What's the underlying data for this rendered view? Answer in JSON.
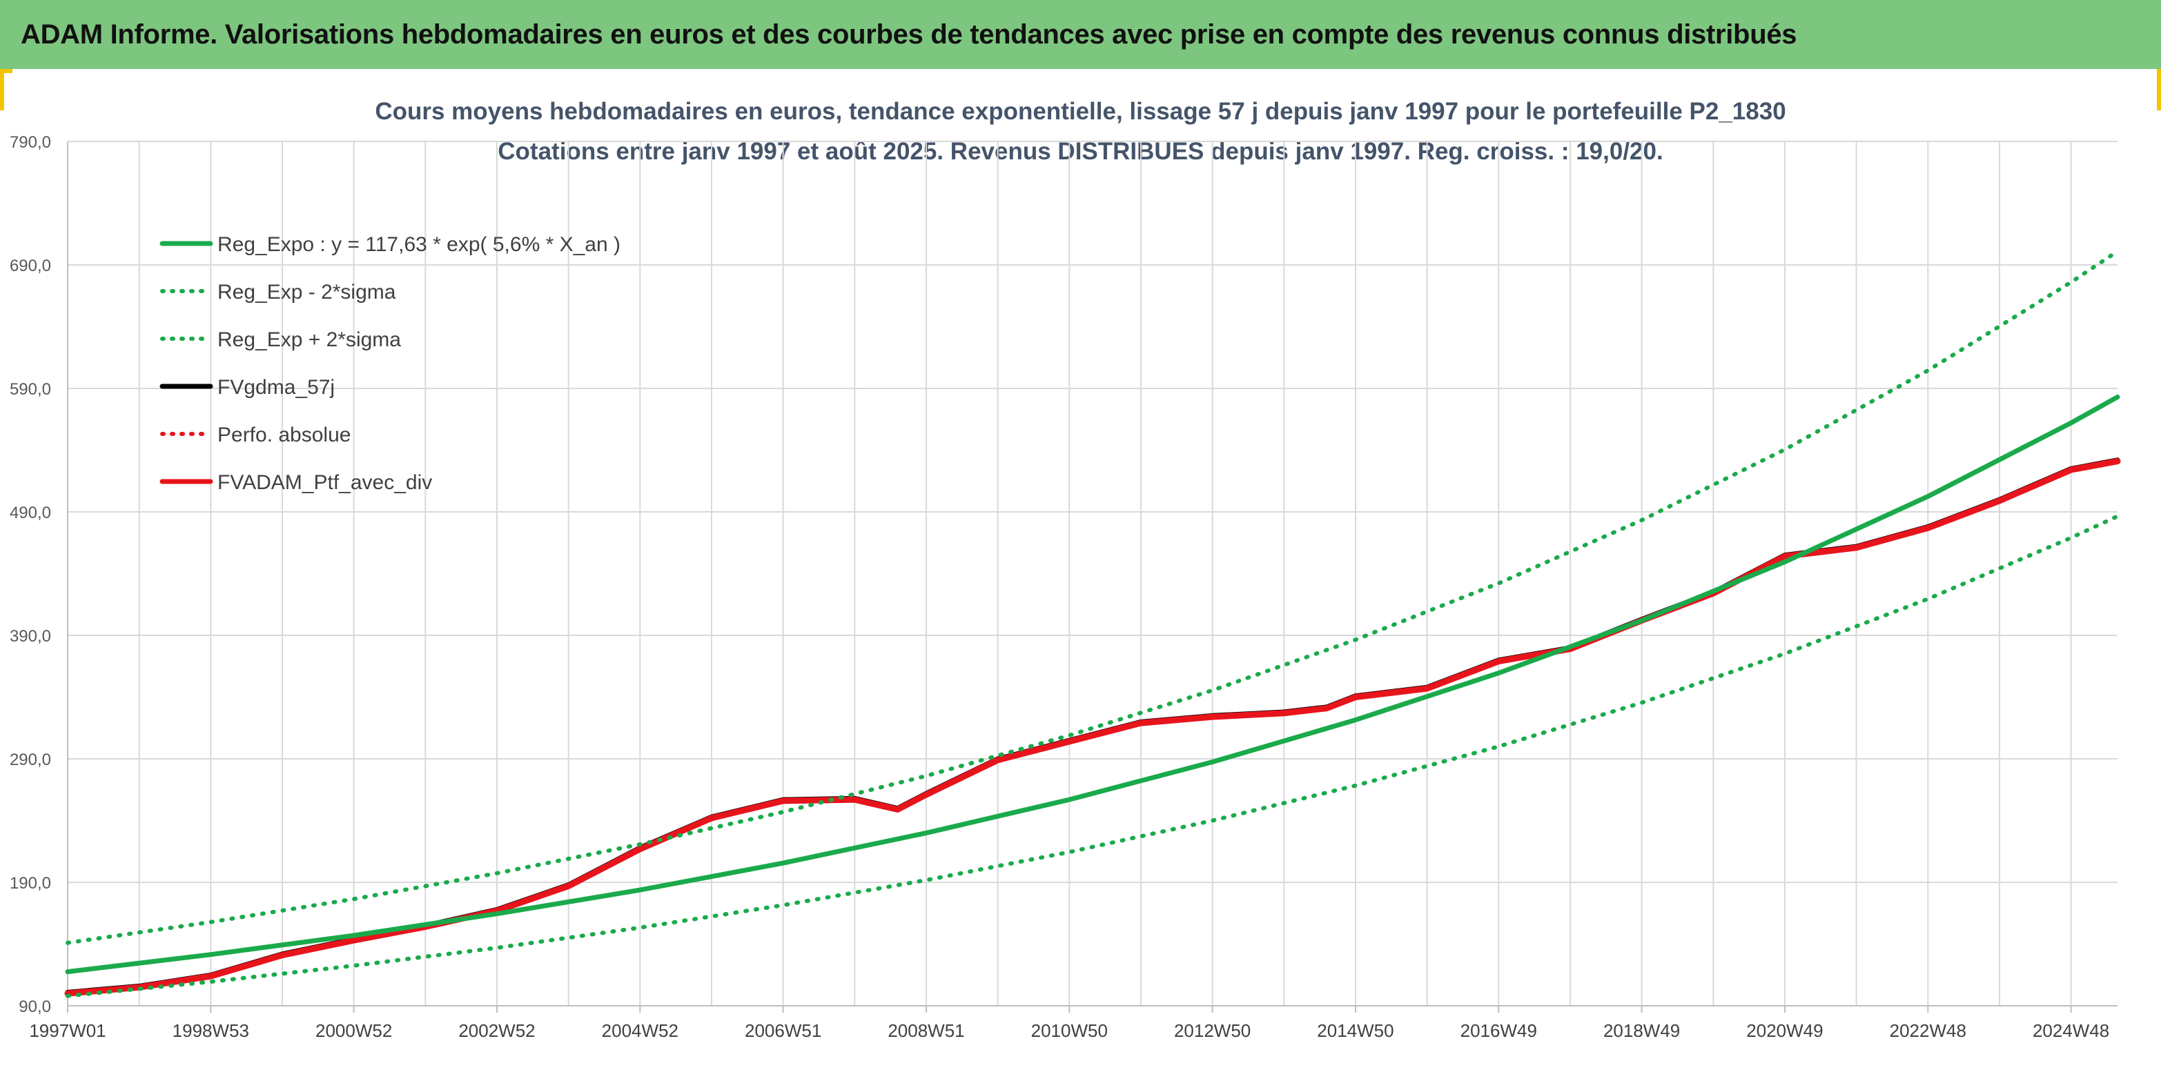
{
  "header": {
    "title": "ADAM Informe. Valorisations hebdomadaires en euros et des courbes de tendances avec prise en compte des revenus connus distribués"
  },
  "colors": {
    "banner": "#7dc67f",
    "accent_corner": "#f5c400",
    "reg_green": "#1aaa4b",
    "ptf_red": "#e8141c",
    "fv_black": "#000000",
    "grid": "#d9d9d9",
    "title_text": "#44546a"
  },
  "chart_data": {
    "type": "line",
    "title": "Cours moyens hebdomadaires en euros, tendance exponentielle, lissage 57 j depuis janv 1997 pour le portefeuille P2_1830",
    "subtitle": "Cotations entre janv 1997 et août 2025. Revenus DISTRIBUES depuis janv 1997. Reg. croiss. : 19,0/20.",
    "xlabel": "",
    "ylabel": "",
    "ylim": [
      90,
      790
    ],
    "yticks": [
      "790,0",
      "690,0",
      "590,0",
      "490,0",
      "390,0",
      "290,0",
      "190,0",
      "90,0"
    ],
    "xlim": [
      1997.0,
      2025.65
    ],
    "xtick_labels": [
      "1997W01",
      "1998W53",
      "2000W52",
      "2002W52",
      "2004W52",
      "2006W51",
      "2008W51",
      "2010W50",
      "2012W50",
      "2014W50",
      "2016W49",
      "2018W49",
      "2020W49",
      "2022W48",
      "2024W48"
    ],
    "xtick_years": [
      1997,
      1999,
      2001,
      2003,
      2005,
      2007,
      2009,
      2011,
      2013,
      2015,
      2017,
      2019,
      2021,
      2023,
      2025
    ],
    "grid": true,
    "legend_position": "top-left",
    "series": [
      {
        "name": "Reg_Expo : y = 117,63 * exp( 5,6% *  X_an )",
        "style": "solid",
        "color": "#1aaa4b",
        "x": [
          1997,
          1999,
          2001,
          2003,
          2005,
          2007,
          2009,
          2011,
          2013,
          2015,
          2017,
          2019,
          2021,
          2023,
          2025,
          2025.65
        ],
        "y": [
          117.6,
          131.5,
          147.0,
          164.5,
          183.8,
          205.6,
          230.0,
          257.0,
          287.5,
          321.5,
          359.5,
          402.0,
          449.5,
          502.5,
          562.0,
          583.0
        ]
      },
      {
        "name": "Reg_Exp - 2*sigma",
        "style": "dotted",
        "color": "#1aaa4b",
        "x": [
          1997,
          1999,
          2001,
          2003,
          2005,
          2007,
          2009,
          2011,
          2013,
          2015,
          2017,
          2019,
          2021,
          2023,
          2025,
          2025.65
        ],
        "y": [
          98.0,
          109.5,
          122.5,
          137.0,
          153.3,
          171.5,
          191.8,
          214.5,
          240.0,
          268.3,
          300.0,
          335.5,
          375.2,
          419.5,
          469.0,
          486.5
        ]
      },
      {
        "name": "Reg_Exp + 2*sigma",
        "style": "dotted",
        "color": "#1aaa4b",
        "x": [
          1997,
          1999,
          2001,
          2003,
          2005,
          2007,
          2009,
          2011,
          2013,
          2015,
          2017,
          2019,
          2021,
          2023,
          2025,
          2025.65
        ],
        "y": [
          141.0,
          157.8,
          176.5,
          197.4,
          220.8,
          247.0,
          276.2,
          309.0,
          345.5,
          386.4,
          432.2,
          483.3,
          540.5,
          604.5,
          676.0,
          701.0
        ]
      },
      {
        "name": "FVgdma_57j",
        "style": "solid",
        "color": "#000000",
        "x": [
          1997.0,
          1998.0,
          1999.0,
          2000.0,
          2001.0,
          2002.0,
          2003.0,
          2004.0,
          2005.0,
          2006.0,
          2007.0,
          2008.0,
          2008.6,
          2009.0,
          2010.0,
          2011.0,
          2012.0,
          2013.0,
          2014.0,
          2014.6,
          2015.0,
          2016.0,
          2017.0,
          2018.0,
          2019.0,
          2020.0,
          2021.0,
          2022.0,
          2023.0,
          2024.0,
          2025.0,
          2025.65
        ],
        "y": [
          101.0,
          106.0,
          115.0,
          132.0,
          144.0,
          155.0,
          168.0,
          188.0,
          218.0,
          243.0,
          257.0,
          258.0,
          250.0,
          262.0,
          290.0,
          305.0,
          320.0,
          325.0,
          328.0,
          332.0,
          341.0,
          348.0,
          370.0,
          380.0,
          403.0,
          425.0,
          455.0,
          462.0,
          478.0,
          500.0,
          525.0,
          532.0
        ]
      },
      {
        "name": "Perfo. absolue",
        "style": "dotted",
        "color": "#e8141c",
        "x": [
          1997.0,
          1998.0,
          1999.0,
          2000.0,
          2001.0,
          2002.0,
          2003.0,
          2004.0,
          2005.0,
          2006.0,
          2007.0,
          2008.0,
          2008.6,
          2009.0,
          2010.0,
          2011.0,
          2012.0,
          2013.0,
          2014.0,
          2014.6,
          2015.0,
          2016.0,
          2017.0,
          2018.0,
          2019.0,
          2020.0,
          2021.0,
          2022.0,
          2023.0,
          2024.0,
          2025.0,
          2025.65
        ],
        "y": [
          101.0,
          106.0,
          115.0,
          132.0,
          144.0,
          155.0,
          168.0,
          188.0,
          218.0,
          243.0,
          257.0,
          258.0,
          250.0,
          262.0,
          290.0,
          305.0,
          320.0,
          325.0,
          328.0,
          332.0,
          341.0,
          348.0,
          370.0,
          380.0,
          403.0,
          425.0,
          455.0,
          462.0,
          478.0,
          500.0,
          525.0,
          532.0
        ]
      },
      {
        "name": "FVADAM_Ptf_avec_div",
        "style": "solid",
        "color": "#e8141c",
        "x": [
          1997.0,
          1998.0,
          1999.0,
          2000.0,
          2001.0,
          2002.0,
          2003.0,
          2004.0,
          2005.0,
          2006.0,
          2007.0,
          2008.0,
          2008.6,
          2009.0,
          2010.0,
          2011.0,
          2012.0,
          2013.0,
          2014.0,
          2014.6,
          2015.0,
          2016.0,
          2017.0,
          2018.0,
          2019.0,
          2020.0,
          2021.0,
          2022.0,
          2023.0,
          2024.0,
          2025.0,
          2025.65
        ],
        "y": [
          100.0,
          105.0,
          114.0,
          131.0,
          143.0,
          154.0,
          167.0,
          187.0,
          217.0,
          242.0,
          256.0,
          257.0,
          249.0,
          261.0,
          289.0,
          304.0,
          319.0,
          324.0,
          327.0,
          331.0,
          340.0,
          347.0,
          369.0,
          379.0,
          402.0,
          424.0,
          454.0,
          461.0,
          477.0,
          499.0,
          524.0,
          531.0
        ]
      }
    ]
  }
}
